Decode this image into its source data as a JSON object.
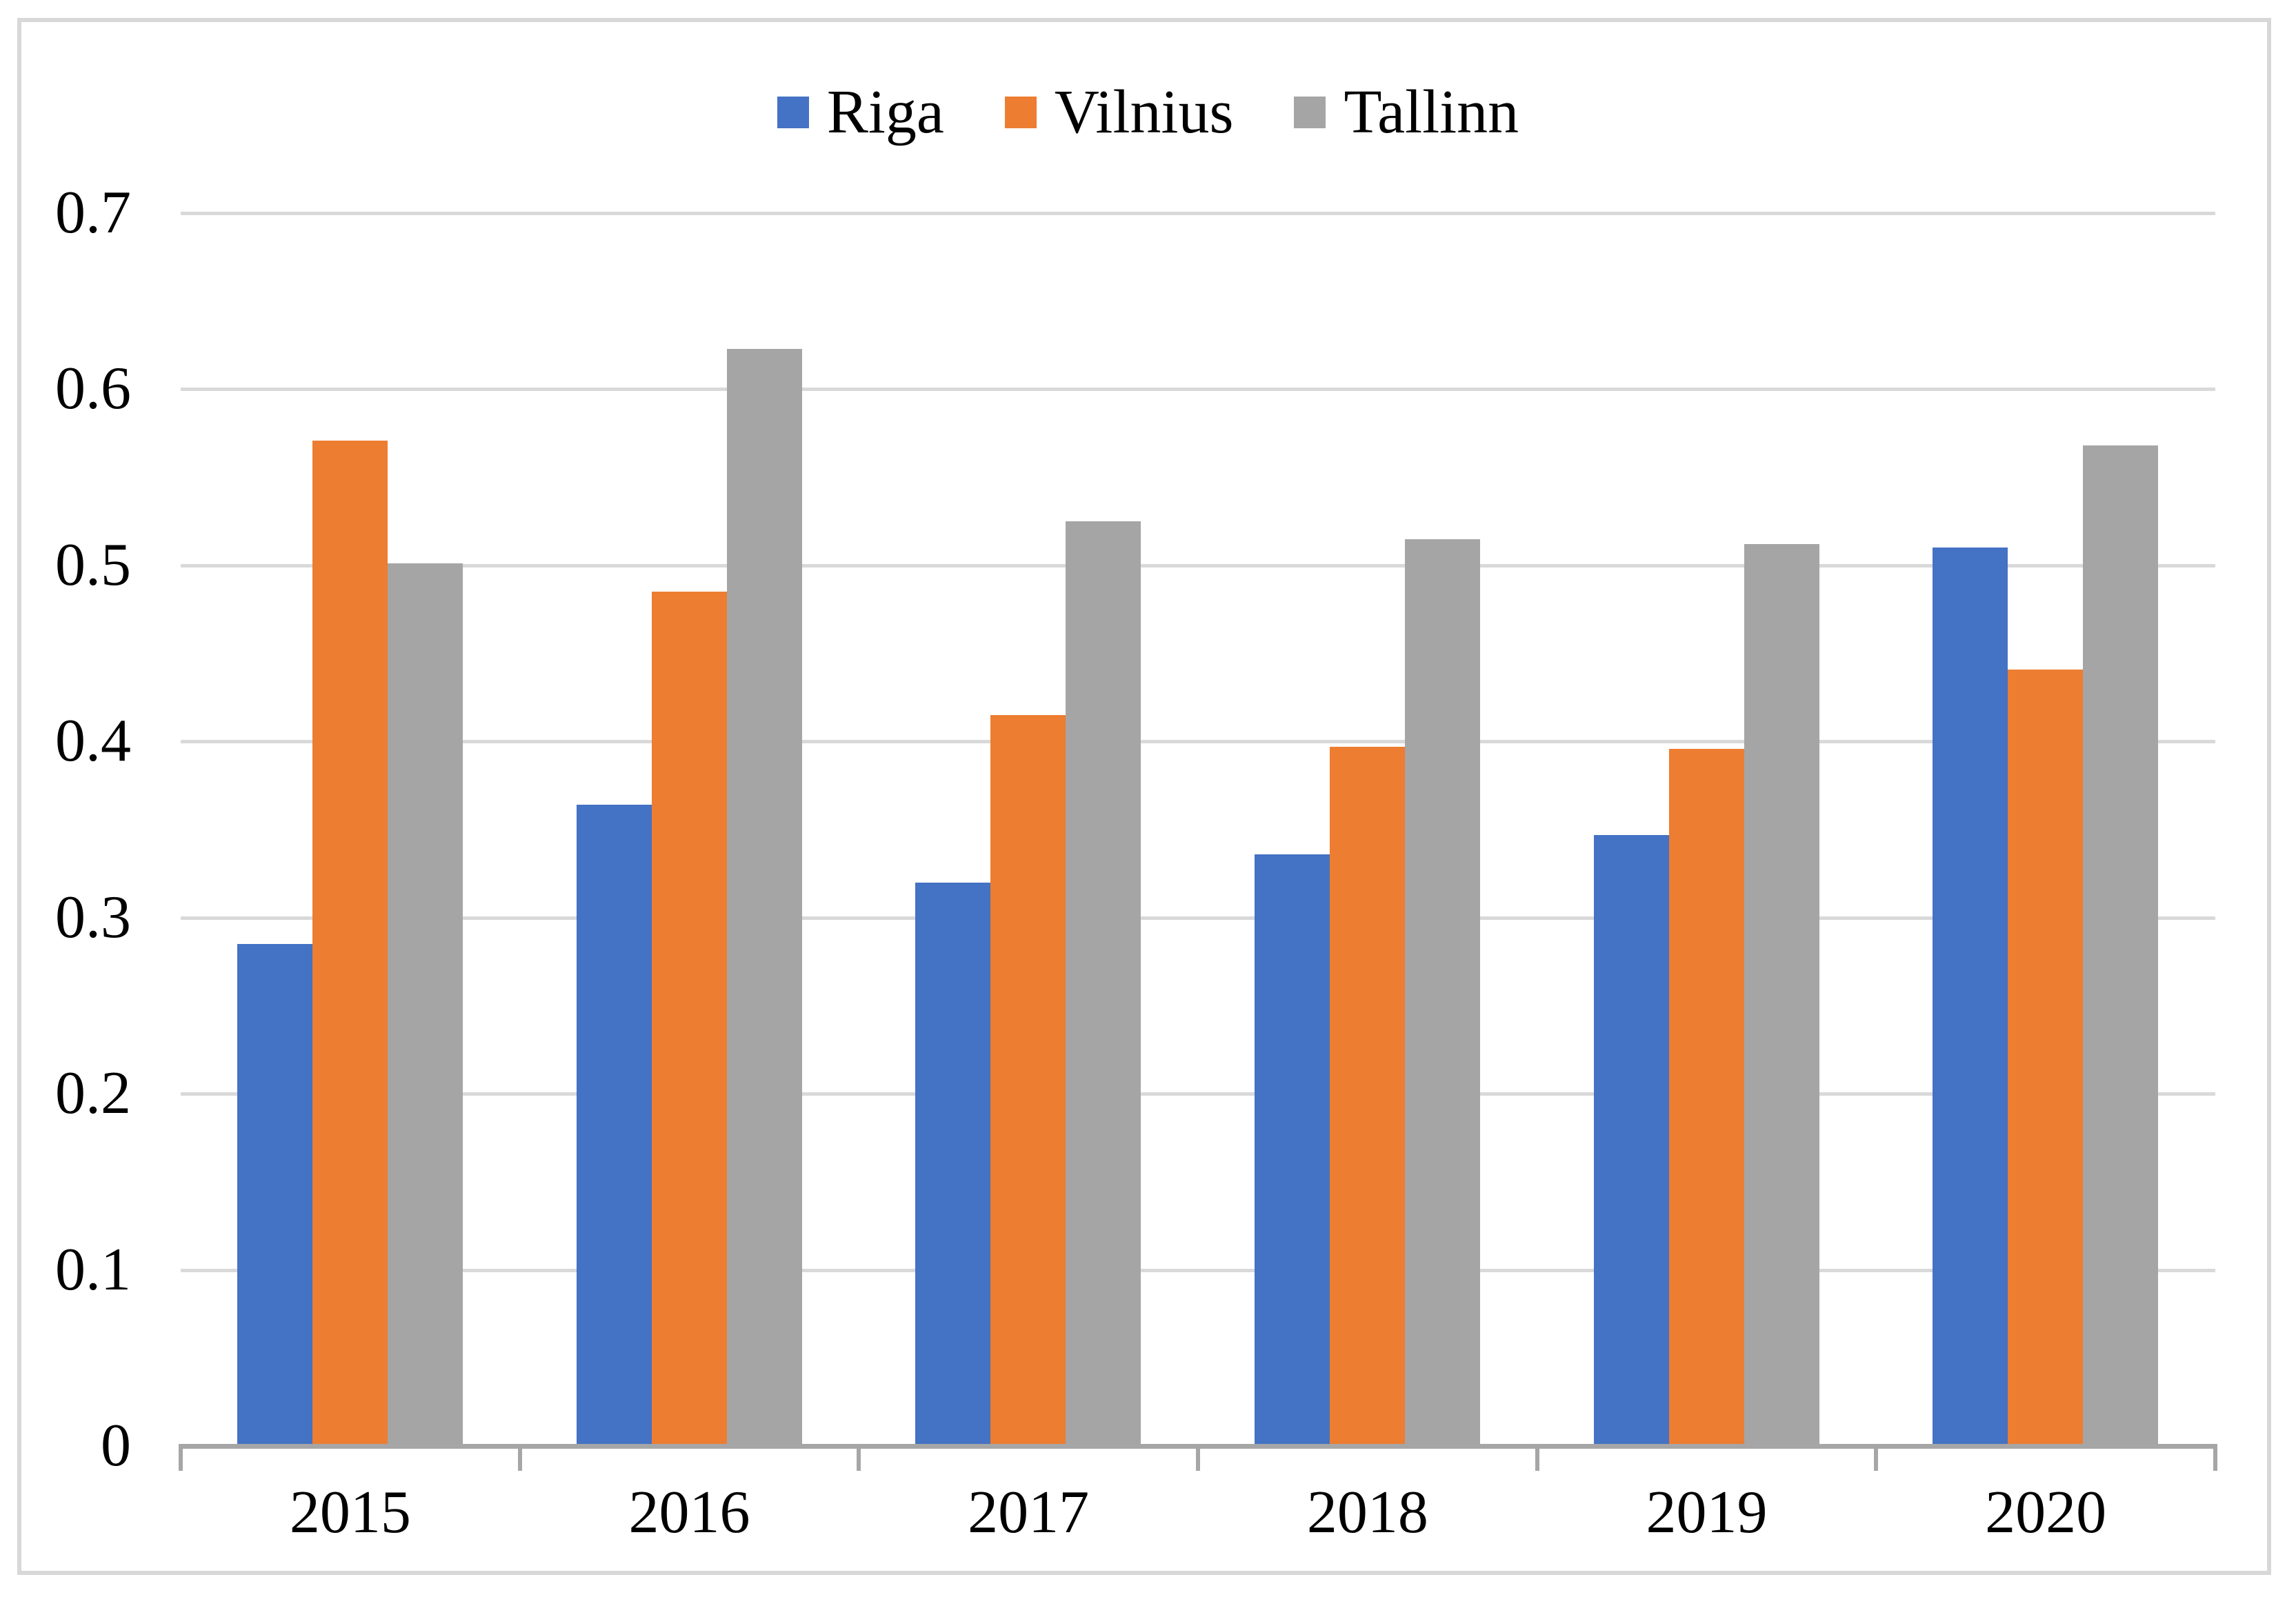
{
  "chart_data": {
    "type": "bar",
    "title": "",
    "xlabel": "",
    "ylabel": "",
    "categories": [
      "2015",
      "2016",
      "2017",
      "2018",
      "2019",
      "2020"
    ],
    "series": [
      {
        "name": "Riga",
        "color": "#4472C4",
        "values": [
          0.285,
          0.364,
          0.32,
          0.336,
          0.347,
          0.51
        ]
      },
      {
        "name": "Vilnius",
        "color": "#ED7D31",
        "values": [
          0.571,
          0.485,
          0.415,
          0.397,
          0.396,
          0.441
        ]
      },
      {
        "name": "Tallinn",
        "color": "#A5A5A5",
        "values": [
          0.501,
          0.623,
          0.525,
          0.515,
          0.512,
          0.568
        ]
      }
    ],
    "ylim": [
      0,
      0.7
    ],
    "ytick_step": 0.1,
    "ytick_labels": [
      "0",
      "0.1",
      "0.2",
      "0.3",
      "0.4",
      "0.5",
      "0.6",
      "0.7"
    ],
    "grid": true,
    "legend_position": "top-center",
    "gridline_color": "#D9D9D9",
    "axis_line_color": "#A6A6A6",
    "frame_color": "#D8D8D8",
    "text_color": "#000000"
  }
}
